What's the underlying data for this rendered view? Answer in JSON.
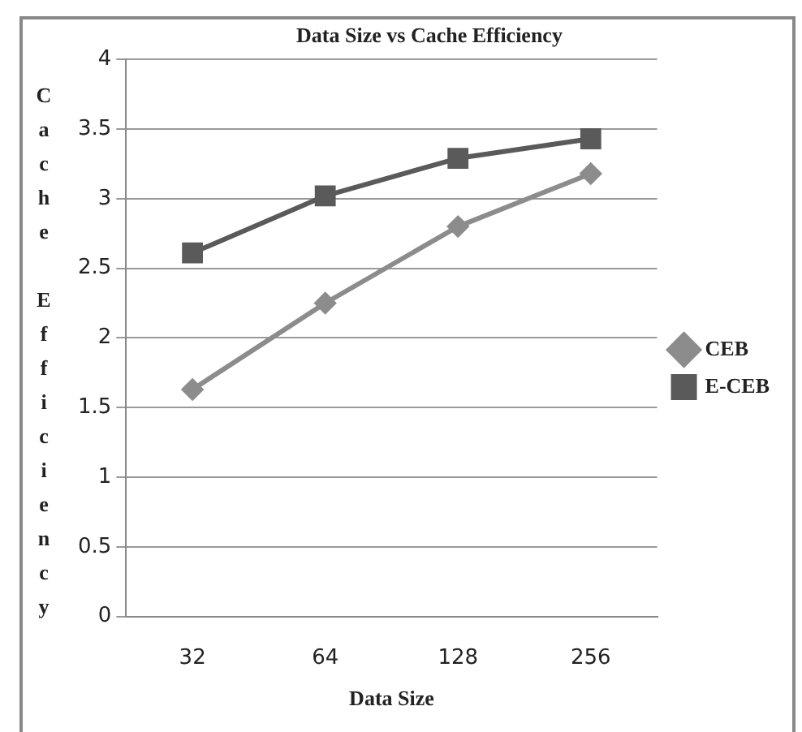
{
  "chart_data": {
    "type": "line",
    "title": "Data Size vs Cache Efficiency",
    "xlabel": "Data Size",
    "ylabel": "Cache Efficiency",
    "categories": [
      "32",
      "64",
      "128",
      "256"
    ],
    "series": [
      {
        "name": "CEB",
        "color": "#8c8c8c",
        "values": [
          1.63,
          2.25,
          2.8,
          3.18
        ],
        "marker": "diamond"
      },
      {
        "name": "E-CEB",
        "color": "#5a5a5a",
        "values": [
          2.61,
          3.02,
          3.29,
          3.43
        ],
        "marker": "square"
      }
    ],
    "ylim": [
      0,
      4
    ],
    "yticks": [
      0,
      0.5,
      1,
      1.5,
      2,
      2.5,
      3,
      3.5,
      4
    ],
    "grid": "y",
    "legend": "right"
  }
}
